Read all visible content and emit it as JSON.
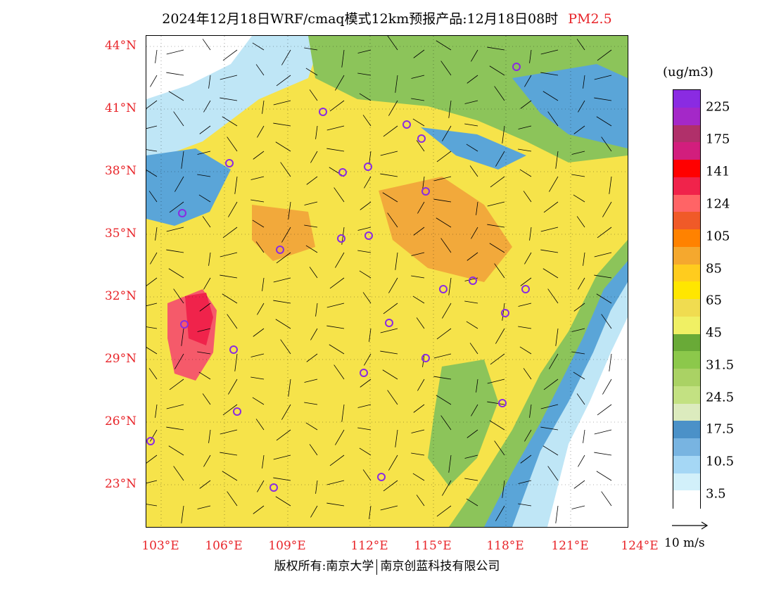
{
  "title": {
    "main": "2024年12月18日WRF/cmaq模式12km预报产品:12月18日08时",
    "pollutant": "PM2.5"
  },
  "map": {
    "lat_labels": [
      "23°N",
      "26°N",
      "29°N",
      "32°N",
      "35°N",
      "38°N",
      "41°N",
      "44°N"
    ],
    "lon_labels": [
      "103°E",
      "106°E",
      "109°E",
      "112°E",
      "115°E",
      "118°E",
      "121°E",
      "124°E"
    ],
    "colors": {
      "clean": "#ffffff",
      "light_blue": "#bfe6f6",
      "blue": "#5aa5d8",
      "green": "#8cc45a",
      "yellow": "#f6e34a",
      "orange": "#f2a93b",
      "red": "#f55a6a",
      "station": "#8a2be2"
    }
  },
  "legend": {
    "unit": "(ug/m3)",
    "labels": [
      "225",
      "175",
      "141",
      "124",
      "105",
      "85",
      "65",
      "45",
      "31.5",
      "24.5",
      "17.5",
      "10.5",
      "3.5"
    ],
    "colors": [
      "#8a2be2",
      "#a428c8",
      "#b0306a",
      "#d21e7d",
      "#ff0000",
      "#f0234b",
      "#ff6466",
      "#f05a28",
      "#ff8200",
      "#f5a82e",
      "#ffcc1e",
      "#ffe600",
      "#f0dc50",
      "#f0f064",
      "#69aa37",
      "#8cc84b",
      "#aad264",
      "#c3e182",
      "#dcebbe",
      "#4b91c8",
      "#78b4e1",
      "#a5d7f5",
      "#d2f0fa",
      "#ffffff"
    ],
    "reference_vector": "10 m/s"
  },
  "footer": {
    "copyright_left": "版权所有:南京大学",
    "copyright_right": "南京创蓝科技有限公司"
  }
}
